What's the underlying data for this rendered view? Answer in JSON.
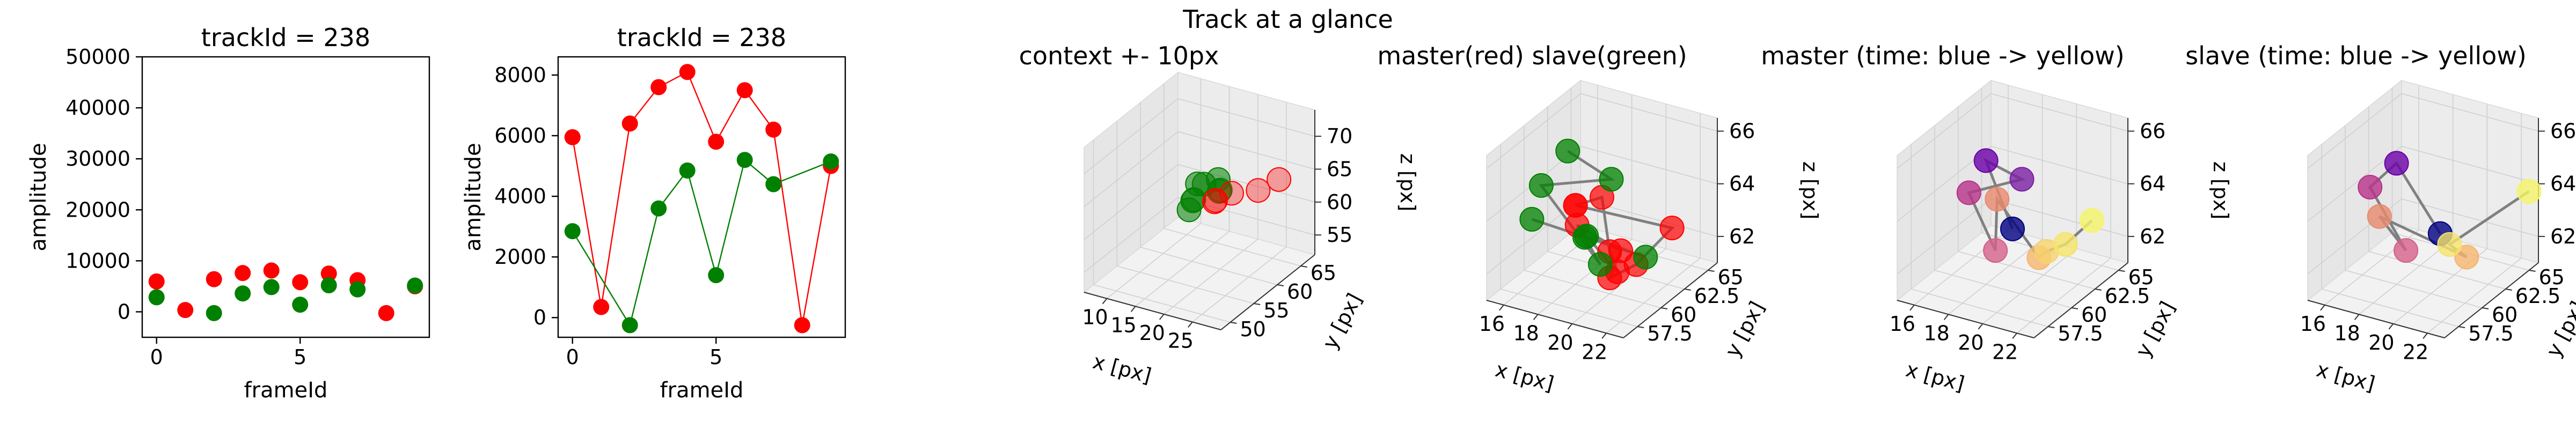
{
  "figure": {
    "suptitle": "Track at a glance"
  },
  "chart_data": [
    {
      "type": "scatter",
      "title": "trackId = 238",
      "xlabel": "frameId",
      "ylabel": "amplitude",
      "xlim": [
        -0.5,
        9.5
      ],
      "ylim": [
        -5000,
        50000
      ],
      "xticks": [
        0,
        5
      ],
      "yticks": [
        0,
        10000,
        20000,
        30000,
        40000,
        50000
      ],
      "series": [
        {
          "color": "#ff0000",
          "lines": false,
          "x": [
            0,
            1,
            2,
            3,
            4,
            5,
            6,
            7,
            8,
            9
          ],
          "y": [
            5950,
            350,
            6400,
            7600,
            8100,
            5800,
            7500,
            6200,
            -250,
            5000
          ]
        },
        {
          "color": "#008000",
          "lines": false,
          "x": [
            0,
            2,
            3,
            4,
            5,
            6,
            7,
            9
          ],
          "y": [
            2850,
            -250,
            3600,
            4850,
            1400,
            5200,
            4400,
            5150
          ]
        }
      ]
    },
    {
      "type": "line",
      "title": "trackId = 238",
      "xlabel": "frameId",
      "ylabel": "amplitude",
      "xlim": [
        -0.5,
        9.5
      ],
      "ylim": [
        -650,
        8600
      ],
      "xticks": [
        0,
        5
      ],
      "yticks": [
        0,
        2000,
        4000,
        6000,
        8000
      ],
      "series": [
        {
          "color": "#ff0000",
          "lines": true,
          "x": [
            0,
            1,
            2,
            3,
            4,
            5,
            6,
            7,
            8,
            9
          ],
          "y": [
            5950,
            350,
            6400,
            7600,
            8100,
            5800,
            7500,
            6200,
            -250,
            5000
          ]
        },
        {
          "color": "#008000",
          "lines": true,
          "x": [
            0,
            2,
            3,
            4,
            5,
            6,
            7,
            9
          ],
          "y": [
            2850,
            -250,
            3600,
            4850,
            1400,
            5200,
            4400,
            5150
          ]
        }
      ]
    },
    {
      "type": "scatter3d",
      "title": "context +- 10px",
      "xlabel": "x [px]",
      "ylabel": "y [px]",
      "zlabel": "z [px]",
      "xlim": [
        6,
        30
      ],
      "ylim": [
        48,
        68
      ],
      "zlim": [
        52,
        74
      ],
      "xticks": [
        10,
        15,
        20,
        25
      ],
      "yticks": [
        50,
        55,
        60,
        65
      ],
      "zticks": [
        55,
        60,
        65,
        70
      ],
      "series": [
        {
          "color": "#008000",
          "alpha": 0.55,
          "x": [
            16,
            17,
            18,
            19,
            17,
            18,
            20,
            16
          ],
          "y": [
            60,
            58,
            59,
            61,
            57,
            62,
            60,
            59
          ],
          "z": [
            64,
            63,
            65,
            63,
            62,
            64,
            64,
            62
          ]
        },
        {
          "color": "#ff0000",
          "alpha": 0.35,
          "x": [
            20,
            22,
            25,
            27,
            19
          ],
          "y": [
            59,
            60,
            62,
            64,
            60
          ],
          "z": [
            63,
            64,
            64,
            65,
            62
          ]
        }
      ]
    },
    {
      "type": "scatter3d",
      "title": "master(red) slave(green)",
      "xlabel": "x [px]",
      "ylabel": "y [px]",
      "zlabel": "z [px]",
      "xlim": [
        15,
        23
      ],
      "ylim": [
        56,
        66
      ],
      "zlim": [
        61,
        66.5
      ],
      "xticks": [
        16,
        18,
        20,
        22
      ],
      "yticks": [
        57.5,
        60.0,
        62.5,
        65.0
      ],
      "zticks": [
        62,
        64,
        66
      ],
      "lines_color": "#808080",
      "series": [
        {
          "color": "#ff0000",
          "alpha": 0.7,
          "x": [
            18,
            19,
            20,
            21,
            17,
            19,
            20,
            21,
            22,
            18
          ],
          "y": [
            60,
            61,
            60,
            59,
            62,
            63,
            60,
            61,
            63,
            60
          ],
          "z": [
            64,
            64.2,
            62.6,
            62.3,
            62.5,
            61.6,
            61.6,
            62,
            63,
            64
          ]
        },
        {
          "color": "#008000",
          "alpha": 0.75,
          "x": [
            17,
            19,
            16,
            20,
            18,
            17,
            21,
            16
          ],
          "y": [
            61,
            62,
            60,
            59,
            61,
            63,
            62,
            59
          ],
          "z": [
            65.6,
            64.6,
            64.4,
            62.4,
            62.5,
            61.8,
            62,
            63.4
          ]
        }
      ]
    },
    {
      "type": "scatter3d",
      "title": "master (time: blue -> yellow)",
      "xlabel": "x [px]",
      "ylabel": "y [px]",
      "zlabel": "z [px]",
      "xlim": [
        15,
        23
      ],
      "ylim": [
        56,
        66
      ],
      "zlim": [
        61,
        66.5
      ],
      "xticks": [
        16,
        18,
        20,
        22
      ],
      "yticks": [
        57.5,
        60.0,
        62.5,
        65.0
      ],
      "zticks": [
        62,
        64,
        66
      ],
      "lines_color": "#808080",
      "series": [
        {
          "colors": [
            "#000080",
            "#6a00a8",
            "#7a1fa2",
            "#b8328a",
            "#d4608a",
            "#e98a6e",
            "#f5b56e",
            "#f7d36e",
            "#f6e46b",
            "#f5f56a"
          ],
          "alpha": 0.8,
          "x": [
            19,
            18,
            19,
            17,
            18,
            17,
            20,
            21,
            21,
            22
          ],
          "y": [
            61,
            60,
            62,
            60,
            61,
            63,
            62,
            61,
            63,
            64
          ],
          "z": [
            63,
            65.7,
            64.6,
            64.3,
            62,
            63.2,
            61.8,
            62.5,
            62.2,
            63
          ]
        }
      ]
    },
    {
      "type": "scatter3d",
      "title": "slave (time: blue -> yellow)",
      "xlabel": "x [px]",
      "ylabel": "y [px]",
      "zlabel": "z [px]",
      "xlim": [
        15,
        23
      ],
      "ylim": [
        56,
        66
      ],
      "zlim": [
        61,
        66.5
      ],
      "xticks": [
        16,
        18,
        20,
        22
      ],
      "yticks": [
        57.5,
        60.0,
        62.5,
        65.0
      ],
      "zticks": [
        62,
        64,
        66
      ],
      "lines_color": "#808080",
      "series": [
        {
          "colors": [
            "#000080",
            "#6a00a8",
            "#b8328a",
            "#d4608a",
            "#e98a6e",
            "#f5b56e",
            "#f6e46b",
            "#f5f56a"
          ],
          "alpha": 0.8,
          "x": [
            20,
            18,
            17,
            18,
            17,
            21,
            20,
            23
          ],
          "y": [
            61,
            60,
            59,
            61,
            60,
            62,
            62,
            65
          ],
          "z": [
            63,
            65.6,
            64.8,
            62,
            63.4,
            62,
            62.3,
            64
          ]
        }
      ]
    }
  ]
}
